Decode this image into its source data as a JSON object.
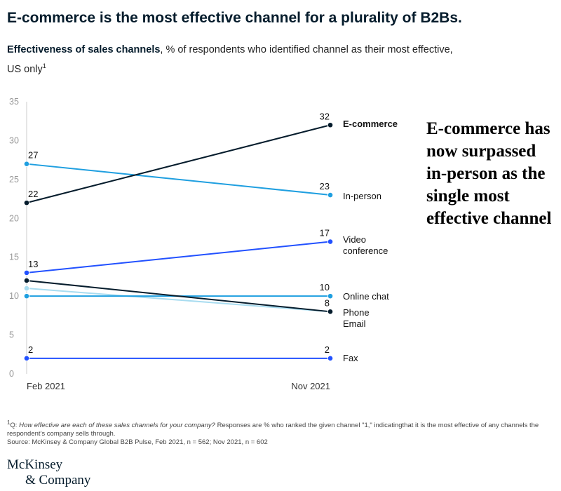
{
  "title": "E-commerce is the most effective channel for a plurality of B2Bs.",
  "subtitle": {
    "bold": "Effectiveness of sales channels",
    "rest": ", % of respondents who identified channel as their most effective, US only",
    "footnote_mark": "1"
  },
  "callout": "E-commerce has now surpassed in-person as the single most effective channel",
  "footnote": {
    "mark": "1",
    "prefix": "Q: ",
    "question": "How effective are each of these sales channels for your company?",
    "rest": " Responses are % who ranked the given channel \"1,\" indicatingthat it is the most effective of any channels the respondent's company sells through.",
    "source": "Source: McKinsey & Company Global B2B Pulse, Feb 2021, n = 562; Nov 2021, n = 602"
  },
  "logo": {
    "line1": "McKinsey",
    "line2": "& Company"
  },
  "colors": {
    "navy": "#051c2c",
    "cyan": "#1f9fe0",
    "blue": "#2251ff",
    "lightcyan": "#a8dcf0"
  },
  "chart_data": {
    "type": "line",
    "categories": [
      "Feb 2021",
      "Nov 2021"
    ],
    "ylim": [
      0,
      35
    ],
    "yticks": [
      0,
      5,
      10,
      15,
      20,
      25,
      30,
      35
    ],
    "grid": false,
    "legend": "right end labels",
    "series": [
      {
        "name": "E-commerce",
        "values": [
          22,
          32
        ],
        "color": "#051c2c",
        "labels": [
          "22",
          "32"
        ],
        "bold": true
      },
      {
        "name": "In-person",
        "values": [
          27,
          23
        ],
        "color": "#1f9fe0",
        "labels": [
          "27",
          "23"
        ]
      },
      {
        "name": "Video conference",
        "values": [
          13,
          17
        ],
        "color": "#2251ff",
        "labels": [
          "13",
          "17"
        ]
      },
      {
        "name": "Online chat",
        "values": [
          10,
          10
        ],
        "color": "#1f9fe0",
        "labels": [
          "",
          "10"
        ]
      },
      {
        "name": "Phone",
        "values": [
          12,
          8
        ],
        "color": "#051c2c",
        "labels": [
          "",
          "8"
        ]
      },
      {
        "name": "Email",
        "values": [
          11,
          8
        ],
        "color": "#a8dcf0",
        "labels": [
          "",
          ""
        ]
      },
      {
        "name": "Fax",
        "values": [
          2,
          2
        ],
        "color": "#2251ff",
        "labels": [
          "2",
          "2"
        ]
      }
    ]
  }
}
